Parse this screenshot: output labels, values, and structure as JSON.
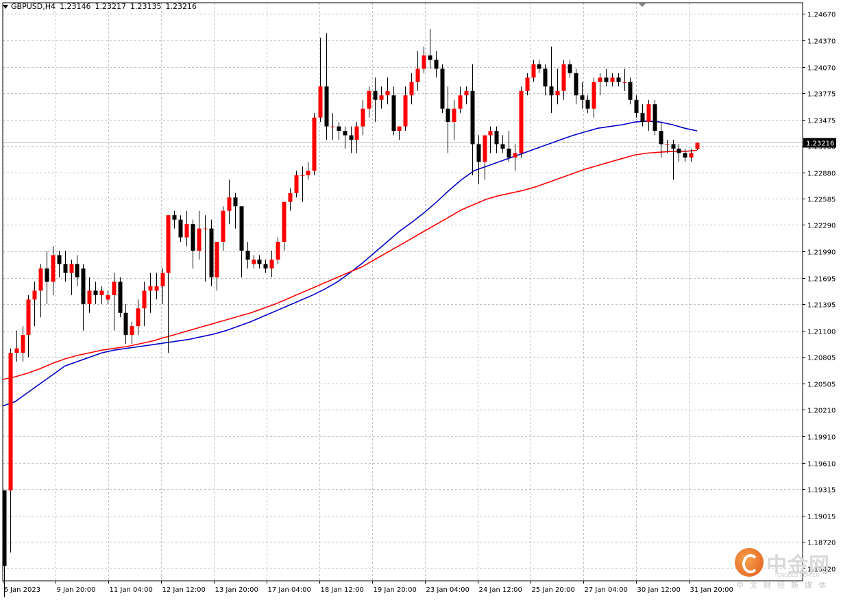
{
  "header": {
    "symbol": "GBPUSD,H4",
    "open": "1.23146",
    "high": "1.23217",
    "low": "1.23135",
    "close": "1.23216"
  },
  "current_price_label": "1.23216",
  "watermark": {
    "brand": "中金网",
    "url": "CNGOLD.COM.CN",
    "tagline": "中文财经新媒体"
  },
  "colors": {
    "bull_candle": "#ff0000",
    "bear_candle": "#000000",
    "ma_fast": "#0000c8",
    "ma_slow": "#ff0000",
    "grid": "#c0c0c0",
    "price_line": "#c0c0c0"
  },
  "chart_data": {
    "type": "candlestick",
    "title": "GBPUSD,H4",
    "ylim": [
      1.1842,
      1.2467
    ],
    "y_ticks": [
      "1.24670",
      "1.24370",
      "1.24070",
      "1.23775",
      "1.23475",
      "1.23180",
      "1.22880",
      "1.22585",
      "1.22290",
      "1.21990",
      "1.21695",
      "1.21395",
      "1.21100",
      "1.20805",
      "1.20505",
      "1.20210",
      "1.19910",
      "1.19610",
      "1.19315",
      "1.19015",
      "1.18720",
      "1.18420"
    ],
    "x_labels": [
      "6 Jan 2023",
      "9 Jan 20:00",
      "11 Jan 04:00",
      "12 Jan 12:00",
      "13 Jan 20:00",
      "17 Jan 04:00",
      "18 Jan 12:00",
      "19 Jan 20:00",
      "23 Jan 04:00",
      "24 Jan 12:00",
      "25 Jan 20:00",
      "27 Jan 04:00",
      "30 Jan 12:00",
      "31 Jan 20:00"
    ],
    "grid": true,
    "candles": [
      [
        1.193,
        1.193,
        1.1775,
        1.1845
      ],
      [
        1.193,
        1.209,
        1.186,
        1.2085
      ],
      [
        1.2085,
        1.211,
        1.2075,
        1.209
      ],
      [
        1.2085,
        1.2115,
        1.2075,
        1.2105
      ],
      [
        1.2105,
        1.215,
        1.208,
        1.2145
      ],
      [
        1.2145,
        1.2165,
        1.2115,
        1.2155
      ],
      [
        1.2155,
        1.2185,
        1.2125,
        1.218
      ],
      [
        1.218,
        1.22,
        1.214,
        1.2165
      ],
      [
        1.2165,
        1.2205,
        1.215,
        1.2195
      ],
      [
        1.2195,
        1.22,
        1.217,
        1.2185
      ],
      [
        1.2185,
        1.22,
        1.2165,
        1.2175
      ],
      [
        1.2175,
        1.219,
        1.215,
        1.2185
      ],
      [
        1.2185,
        1.2195,
        1.216,
        1.217
      ],
      [
        1.218,
        1.2185,
        1.211,
        1.214
      ],
      [
        1.214,
        1.217,
        1.213,
        1.2155
      ],
      [
        1.2155,
        1.2165,
        1.214,
        1.215
      ],
      [
        1.215,
        1.216,
        1.214,
        1.2155
      ],
      [
        1.2145,
        1.2155,
        1.214,
        1.215
      ],
      [
        1.215,
        1.2175,
        1.211,
        1.2165
      ],
      [
        1.2165,
        1.217,
        1.2125,
        1.213
      ],
      [
        1.213,
        1.214,
        1.2095,
        1.2105
      ],
      [
        1.2105,
        1.212,
        1.2095,
        1.2115
      ],
      [
        1.2115,
        1.2145,
        1.2105,
        1.2135
      ],
      [
        1.2135,
        1.2165,
        1.2115,
        1.2155
      ],
      [
        1.2155,
        1.2175,
        1.213,
        1.216
      ],
      [
        1.2155,
        1.2175,
        1.2145,
        1.216
      ],
      [
        1.216,
        1.218,
        1.214,
        1.2175
      ],
      [
        1.2175,
        1.224,
        1.2085,
        1.224
      ],
      [
        1.224,
        1.2245,
        1.2225,
        1.2235
      ],
      [
        1.2235,
        1.224,
        1.221,
        1.2215
      ],
      [
        1.2215,
        1.2245,
        1.2205,
        1.223
      ],
      [
        1.223,
        1.2235,
        1.218,
        1.22
      ],
      [
        1.22,
        1.2245,
        1.219,
        1.2225
      ],
      [
        1.2225,
        1.224,
        1.2165,
        1.2225
      ],
      [
        1.2225,
        1.2235,
        1.216,
        1.217
      ],
      [
        1.217,
        1.221,
        1.2155,
        1.221
      ],
      [
        1.221,
        1.225,
        1.22,
        1.2245
      ],
      [
        1.2245,
        1.228,
        1.223,
        1.226
      ],
      [
        1.226,
        1.2265,
        1.2225,
        1.225
      ],
      [
        1.225,
        1.225,
        1.217,
        1.22
      ],
      [
        1.22,
        1.221,
        1.218,
        1.219
      ],
      [
        1.2185,
        1.2195,
        1.218,
        1.219
      ],
      [
        1.219,
        1.2195,
        1.218,
        1.2185
      ],
      [
        1.2185,
        1.219,
        1.2175,
        1.218
      ],
      [
        1.218,
        1.22,
        1.217,
        1.219
      ],
      [
        1.219,
        1.2215,
        1.2185,
        1.221
      ],
      [
        1.221,
        1.2255,
        1.22,
        1.2255
      ],
      [
        1.2255,
        1.227,
        1.2245,
        1.2265
      ],
      [
        1.2265,
        1.229,
        1.226,
        1.2285
      ],
      [
        1.2285,
        1.2295,
        1.2255,
        1.2285
      ],
      [
        1.2285,
        1.23,
        1.228,
        1.229
      ],
      [
        1.229,
        1.2355,
        1.2285,
        1.235
      ],
      [
        1.235,
        1.244,
        1.2345,
        1.2385
      ],
      [
        1.2385,
        1.2445,
        1.2325,
        1.234
      ],
      [
        1.234,
        1.2355,
        1.2325,
        1.234
      ],
      [
        1.234,
        1.2345,
        1.2325,
        1.2335
      ],
      [
        1.2335,
        1.234,
        1.2315,
        1.233
      ],
      [
        1.233,
        1.234,
        1.231,
        1.2325
      ],
      [
        1.2325,
        1.2345,
        1.231,
        1.234
      ],
      [
        1.234,
        1.237,
        1.233,
        1.236
      ],
      [
        1.236,
        1.2385,
        1.235,
        1.238
      ],
      [
        1.238,
        1.2395,
        1.2345,
        1.237
      ],
      [
        1.237,
        1.2385,
        1.236,
        1.2375
      ],
      [
        1.2375,
        1.2395,
        1.2365,
        1.238
      ],
      [
        1.2375,
        1.2385,
        1.233,
        1.2335
      ],
      [
        1.2335,
        1.234,
        1.2325,
        1.234
      ],
      [
        1.234,
        1.2385,
        1.2335,
        1.2375
      ],
      [
        1.2375,
        1.24,
        1.2365,
        1.239
      ],
      [
        1.239,
        1.2425,
        1.238,
        1.2405
      ],
      [
        1.2405,
        1.243,
        1.24,
        1.242
      ],
      [
        1.242,
        1.245,
        1.2405,
        1.2415
      ],
      [
        1.2415,
        1.2425,
        1.2395,
        1.2405
      ],
      [
        1.2405,
        1.241,
        1.2355,
        1.236
      ],
      [
        1.236,
        1.2385,
        1.231,
        1.2345
      ],
      [
        1.2345,
        1.237,
        1.2325,
        1.236
      ],
      [
        1.236,
        1.2385,
        1.2355,
        1.2375
      ],
      [
        1.2375,
        1.2385,
        1.2365,
        1.238
      ],
      [
        1.238,
        1.241,
        1.2285,
        1.232
      ],
      [
        1.232,
        1.233,
        1.2275,
        1.23
      ],
      [
        1.23,
        1.233,
        1.228,
        1.233
      ],
      [
        1.233,
        1.234,
        1.231,
        1.2335
      ],
      [
        1.2335,
        1.234,
        1.231,
        1.232
      ],
      [
        1.232,
        1.233,
        1.231,
        1.2315
      ],
      [
        1.2315,
        1.2335,
        1.23,
        1.2305
      ],
      [
        1.2305,
        1.232,
        1.229,
        1.231
      ],
      [
        1.231,
        1.2385,
        1.2305,
        1.238
      ],
      [
        1.238,
        1.24,
        1.2375,
        1.2395
      ],
      [
        1.2395,
        1.2415,
        1.239,
        1.241
      ],
      [
        1.241,
        1.2415,
        1.24,
        1.2405
      ],
      [
        1.2405,
        1.241,
        1.2375,
        1.2385
      ],
      [
        1.2385,
        1.243,
        1.2355,
        1.2375
      ],
      [
        1.2375,
        1.2405,
        1.2365,
        1.238
      ],
      [
        1.238,
        1.2415,
        1.237,
        1.241
      ],
      [
        1.241,
        1.2415,
        1.2395,
        1.24
      ],
      [
        1.24,
        1.2405,
        1.2365,
        1.2375
      ],
      [
        1.2375,
        1.239,
        1.236,
        1.237
      ],
      [
        1.237,
        1.2375,
        1.2355,
        1.236
      ],
      [
        1.236,
        1.2395,
        1.235,
        1.239
      ],
      [
        1.239,
        1.24,
        1.2375,
        1.2395
      ],
      [
        1.2395,
        1.2405,
        1.2385,
        1.239
      ],
      [
        1.239,
        1.24,
        1.2385,
        1.2395
      ],
      [
        1.2395,
        1.24,
        1.2385,
        1.239
      ],
      [
        1.239,
        1.2405,
        1.238,
        1.239
      ],
      [
        1.239,
        1.2395,
        1.2365,
        1.237
      ],
      [
        1.237,
        1.2375,
        1.235,
        1.2355
      ],
      [
        1.2355,
        1.2365,
        1.234,
        1.2345
      ],
      [
        1.2345,
        1.237,
        1.2335,
        1.2365
      ],
      [
        1.2365,
        1.237,
        1.233,
        1.2335
      ],
      [
        1.2335,
        1.2345,
        1.2305,
        1.232
      ],
      [
        1.232,
        1.2325,
        1.231,
        1.232
      ],
      [
        1.232,
        1.2325,
        1.228,
        1.2315
      ],
      [
        1.2315,
        1.232,
        1.23,
        1.231
      ],
      [
        1.231,
        1.2315,
        1.23,
        1.2305
      ],
      [
        1.2305,
        1.2315,
        1.23,
        1.231
      ],
      [
        1.23146,
        1.23217,
        1.23135,
        1.23216
      ]
    ],
    "series": [
      {
        "values": [
          1.2025,
          1.203,
          1.204,
          1.205,
          1.206,
          1.207,
          1.2075,
          1.208,
          1.2085,
          1.2088,
          1.209,
          1.2092,
          1.2094,
          1.2096,
          1.2098,
          1.21,
          1.2103,
          1.2106,
          1.211,
          1.2115,
          1.212,
          1.2126,
          1.2132,
          1.2138,
          1.2144,
          1.215,
          1.2157,
          1.2165,
          1.2175,
          1.2186,
          1.2198,
          1.221,
          1.2222,
          1.2232,
          1.2243,
          1.2255,
          1.2268,
          1.228,
          1.229,
          1.2295,
          1.23,
          1.2305,
          1.231,
          1.2315,
          1.232,
          1.2325,
          1.233,
          1.2334,
          1.2338,
          1.234,
          1.2342,
          1.2345,
          1.2346,
          1.2345,
          1.2342,
          1.2338,
          1.2335
        ]
      },
      {
        "values": [
          1.2055,
          1.2058,
          1.2062,
          1.2067,
          1.2073,
          1.2078,
          1.2082,
          1.2085,
          1.2088,
          1.209,
          1.2092,
          1.2095,
          1.2098,
          1.2102,
          1.2106,
          1.211,
          1.2114,
          1.2118,
          1.2122,
          1.2126,
          1.213,
          1.2135,
          1.214,
          1.2146,
          1.2152,
          1.2158,
          1.2164,
          1.217,
          1.2176,
          1.2182,
          1.219,
          1.2198,
          1.2206,
          1.2214,
          1.2222,
          1.223,
          1.2238,
          1.2246,
          1.2252,
          1.2258,
          1.2262,
          1.2265,
          1.2268,
          1.2272,
          1.2277,
          1.2282,
          1.2287,
          1.2292,
          1.2296,
          1.23,
          1.2304,
          1.2308,
          1.231,
          1.2311,
          1.2312,
          1.2312,
          1.2313
        ]
      }
    ]
  }
}
